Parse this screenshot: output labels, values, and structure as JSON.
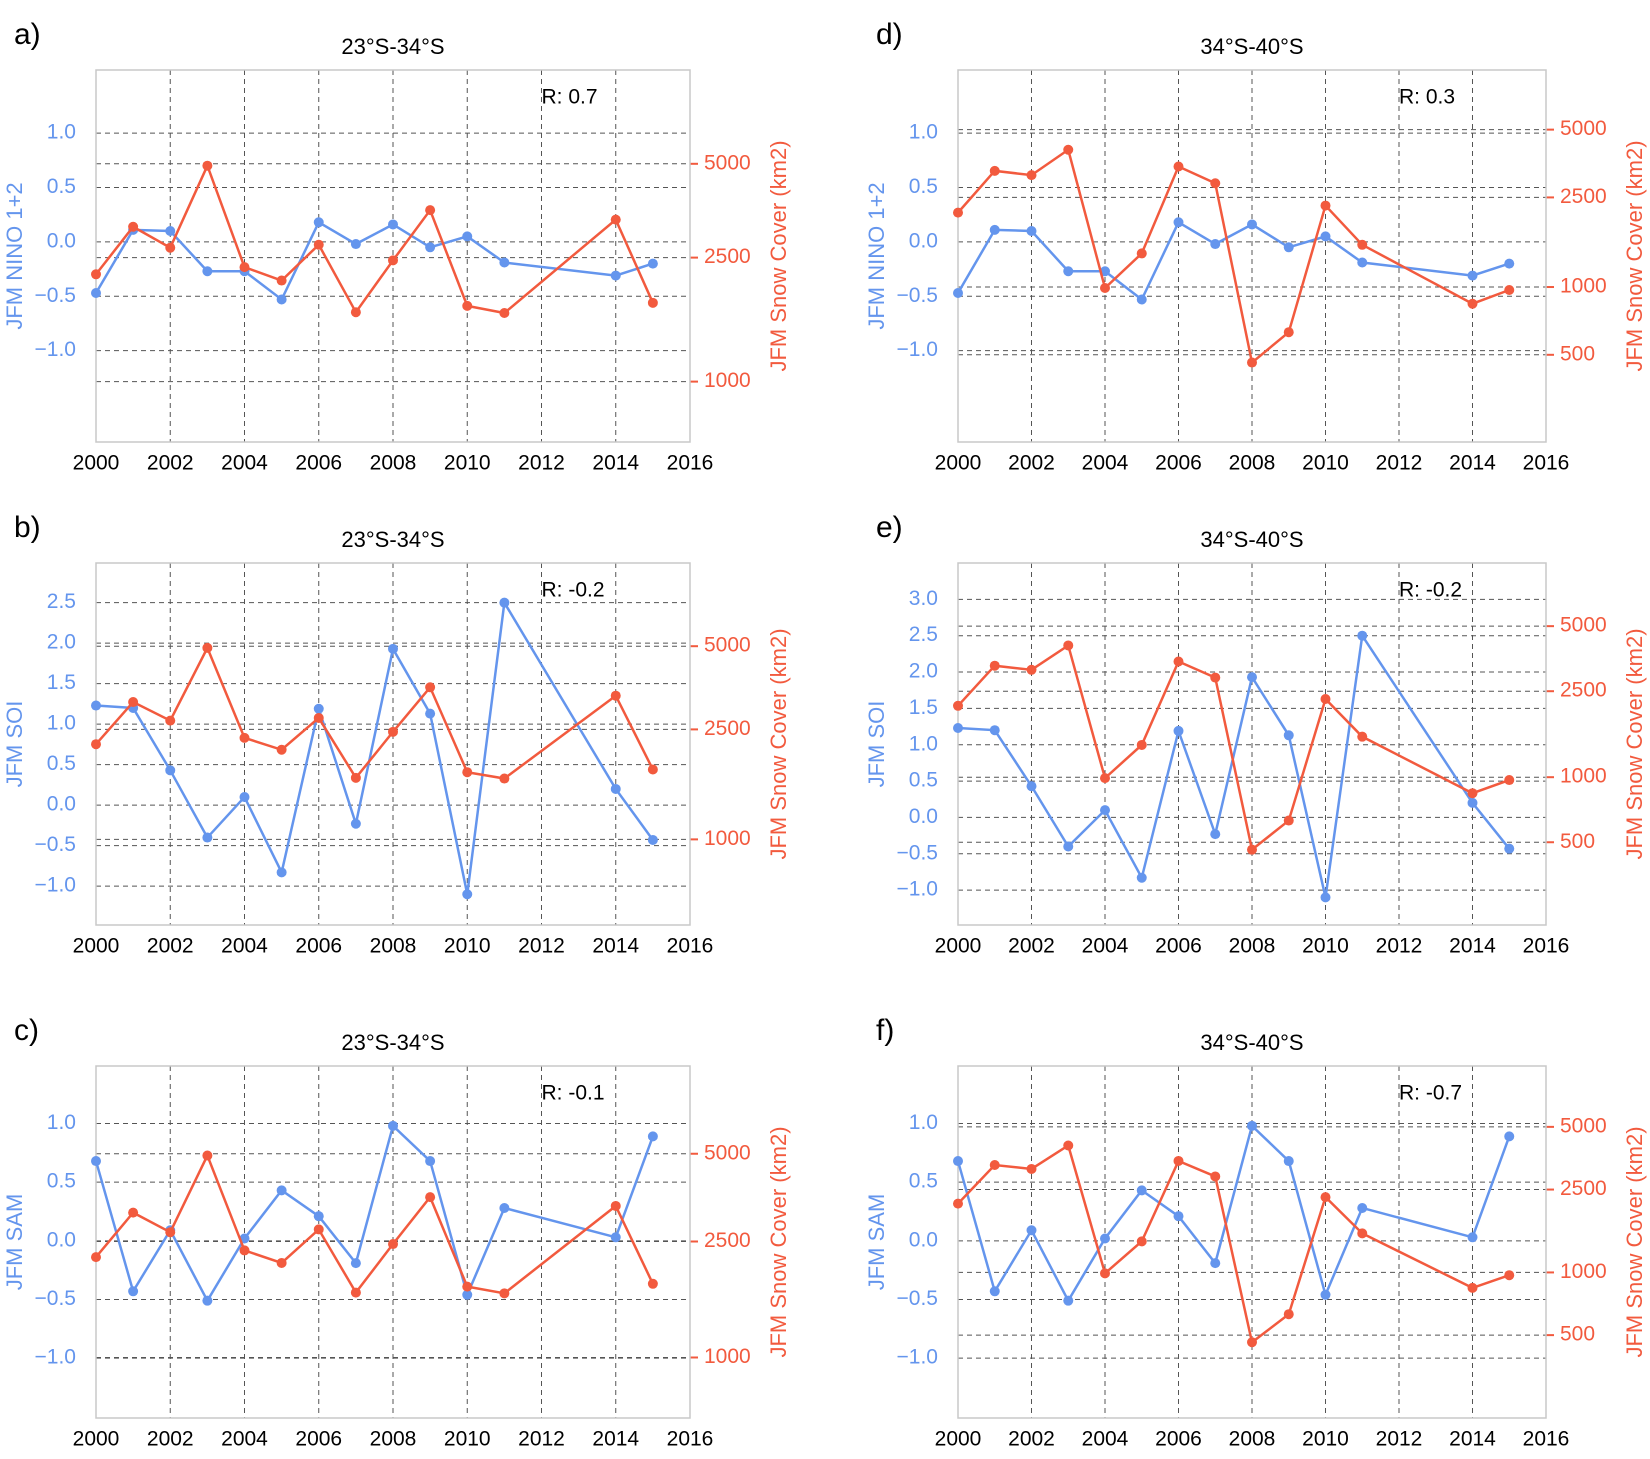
{
  "chart_data": [
    {
      "type": "line",
      "panel_label": "a)",
      "title": "23°S-34°S",
      "annotation": "R: 0.7",
      "ylabel": "JFM NINO 1+2",
      "y2label": "JFM Snow Cover (km2)",
      "x": [
        2000,
        2001,
        2002,
        2003,
        2004,
        2005,
        2006,
        2007,
        2008,
        2009,
        2010,
        2011,
        2014,
        2015
      ],
      "xlim": [
        2000,
        2016
      ],
      "xticks": [
        2000,
        2002,
        2004,
        2006,
        2008,
        2010,
        2012,
        2014,
        2016
      ],
      "ylim": [
        -1.84,
        1.58
      ],
      "yticks": [
        {
          "value": 1.0,
          "label": "1.0"
        },
        {
          "value": 0.5,
          "label": "0.5"
        },
        {
          "value": 0,
          "label": "0.0"
        },
        {
          "value": -0.5,
          "label": "−0.5"
        },
        {
          "value": -1.0,
          "label": "−1.0"
        }
      ],
      "y2lim": [
        640,
        10000
      ],
      "y2ticks": [
        1000,
        2500,
        5000
      ],
      "y2scale": "log",
      "grid": true,
      "series": [
        {
          "color": "#6495ed",
          "values": [
            -0.47,
            0.11,
            0.1,
            -0.27,
            -0.27,
            -0.53,
            0.18,
            -0.02,
            0.16,
            -0.05,
            0.05,
            -0.19,
            -0.31,
            -0.2
          ]
        },
        {
          "color": "#f25a3e",
          "axis": "y2",
          "values": [
            2210,
            3140,
            2690,
            4930,
            2330,
            2110,
            2750,
            1670,
            2450,
            3550,
            1750,
            1660,
            3310,
            1790
          ]
        }
      ]
    },
    {
      "type": "line",
      "panel_label": "b)",
      "title": "23°S-34°S",
      "annotation": "R: -0.2",
      "ylabel": "JFM SOI",
      "y2label": "JFM Snow Cover (km2)",
      "x": [
        2000,
        2001,
        2002,
        2003,
        2004,
        2005,
        2006,
        2007,
        2008,
        2009,
        2010,
        2011,
        2014,
        2015
      ],
      "xlim": [
        2000,
        2016
      ],
      "xticks": [
        2000,
        2002,
        2004,
        2006,
        2008,
        2010,
        2012,
        2014,
        2016
      ],
      "ylim": [
        -1.48,
        2.99
      ],
      "yticks": [
        2.5,
        {
          "value": 2.0,
          "label": "2.0"
        },
        1.5,
        {
          "value": 1.0,
          "label": "1.0"
        },
        0.5,
        {
          "value": 0,
          "label": "0.0"
        },
        {
          "value": -0.5,
          "label": "−0.5"
        },
        {
          "value": -1.0,
          "label": "−1.0"
        }
      ],
      "y2lim": [
        490,
        10000
      ],
      "y2ticks": [
        1000,
        2500,
        5000
      ],
      "y2scale": "log",
      "grid": true,
      "series": [
        {
          "color": "#6495ed",
          "values": [
            1.23,
            1.2,
            0.43,
            -0.4,
            0.1,
            -0.83,
            1.19,
            -0.23,
            1.93,
            1.13,
            -1.1,
            2.5,
            0.2,
            -0.43
          ]
        },
        {
          "color": "#f25a3e",
          "axis": "y2",
          "values": [
            2210,
            3140,
            2690,
            4930,
            2330,
            2110,
            2750,
            1670,
            2450,
            3550,
            1750,
            1660,
            3310,
            1790
          ]
        }
      ]
    },
    {
      "type": "line",
      "panel_label": "c)",
      "title": "23°S-34°S",
      "annotation": "R: -0.1",
      "ylabel": "JFM SAM",
      "y2label": "JFM Snow Cover (km2)",
      "x": [
        2000,
        2001,
        2002,
        2003,
        2004,
        2005,
        2006,
        2007,
        2008,
        2009,
        2010,
        2011,
        2014,
        2015
      ],
      "xlim": [
        2000,
        2016
      ],
      "xticks": [
        2000,
        2002,
        2004,
        2006,
        2008,
        2010,
        2012,
        2014,
        2016
      ],
      "ylim": [
        -1.51,
        1.49
      ],
      "yticks": [
        {
          "value": 1.0,
          "label": "1.0"
        },
        {
          "value": 0.5,
          "label": "0.5"
        },
        {
          "value": 0,
          "label": "0.0"
        },
        {
          "value": -0.5,
          "label": "−0.5"
        },
        {
          "value": -1.0,
          "label": "−1.0"
        }
      ],
      "y2lim": [
        620,
        10000
      ],
      "y2ticks": [
        1000,
        2500,
        5000
      ],
      "y2scale": "log",
      "grid": true,
      "series": [
        {
          "color": "#6495ed",
          "values": [
            0.68,
            -0.43,
            0.09,
            -0.51,
            0.02,
            0.43,
            0.21,
            -0.19,
            0.98,
            0.68,
            -0.46,
            0.28,
            0.03,
            0.89
          ]
        },
        {
          "color": "#f25a3e",
          "axis": "y2",
          "values": [
            2210,
            3140,
            2690,
            4930,
            2330,
            2110,
            2750,
            1670,
            2450,
            3550,
            1750,
            1660,
            3310,
            1790
          ]
        }
      ]
    },
    {
      "type": "line",
      "panel_label": "d)",
      "title": "34°S-40°S",
      "annotation": "R: 0.3",
      "ylabel": "JFM NINO 1+2",
      "y2label": "JFM Snow Cover (km2)",
      "x": [
        2000,
        2001,
        2002,
        2003,
        2004,
        2005,
        2006,
        2007,
        2008,
        2009,
        2010,
        2011,
        2014,
        2015
      ],
      "xlim": [
        2000,
        2016
      ],
      "xticks": [
        2000,
        2002,
        2004,
        2006,
        2008,
        2010,
        2012,
        2014,
        2016
      ],
      "ylim": [
        -1.84,
        1.58
      ],
      "yticks": [
        {
          "value": 1.0,
          "label": "1.0"
        },
        {
          "value": 0.5,
          "label": "0.5"
        },
        {
          "value": 0,
          "label": "0.0"
        },
        {
          "value": -0.5,
          "label": "−0.5"
        },
        {
          "value": -1.0,
          "label": "−1.0"
        }
      ],
      "y2lim": [
        205,
        9200
      ],
      "y2ticks": [
        500,
        1000,
        2500,
        5000
      ],
      "y2scale": "log",
      "grid": true,
      "series": [
        {
          "color": "#6495ed",
          "values": [
            -0.47,
            0.11,
            0.1,
            -0.27,
            -0.27,
            -0.53,
            0.18,
            -0.02,
            0.16,
            -0.05,
            0.05,
            -0.19,
            -0.31,
            -0.2
          ]
        },
        {
          "color": "#f25a3e",
          "axis": "y2",
          "values": [
            2140,
            3280,
            3140,
            4070,
            990,
            1410,
            3430,
            2890,
            462,
            630,
            2300,
            1540,
            843,
            970
          ]
        }
      ]
    },
    {
      "type": "line",
      "panel_label": "e)",
      "title": "34°S-40°S",
      "annotation": "R: -0.2",
      "ylabel": "JFM SOI",
      "y2label": "JFM Snow Cover (km2)",
      "x": [
        2000,
        2001,
        2002,
        2003,
        2004,
        2005,
        2006,
        2007,
        2008,
        2009,
        2010,
        2011,
        2014,
        2015
      ],
      "xlim": [
        2000,
        2016
      ],
      "xticks": [
        2000,
        2002,
        2004,
        2006,
        2008,
        2010,
        2012,
        2014,
        2016
      ],
      "ylim": [
        -1.48,
        3.5
      ],
      "yticks": [
        {
          "value": 3.0,
          "label": "3.0"
        },
        2.5,
        {
          "value": 2.0,
          "label": "2.0"
        },
        1.5,
        {
          "value": 1.0,
          "label": "1.0"
        },
        0.5,
        {
          "value": 0,
          "label": "0.0"
        },
        {
          "value": -0.5,
          "label": "−0.5"
        },
        {
          "value": -1.0,
          "label": "−1.0"
        }
      ],
      "y2lim": [
        207,
        9800
      ],
      "y2ticks": [
        500,
        1000,
        2500,
        5000
      ],
      "y2scale": "log",
      "grid": true,
      "series": [
        {
          "color": "#6495ed",
          "values": [
            1.23,
            1.2,
            0.43,
            -0.4,
            0.1,
            -0.83,
            1.19,
            -0.23,
            1.93,
            1.13,
            -1.1,
            2.5,
            0.2,
            -0.43
          ]
        },
        {
          "color": "#f25a3e",
          "axis": "y2",
          "values": [
            2140,
            3280,
            3140,
            4070,
            990,
            1410,
            3430,
            2890,
            462,
            630,
            2300,
            1540,
            843,
            970
          ]
        }
      ]
    },
    {
      "type": "line",
      "panel_label": "f)",
      "title": "34°S-40°S",
      "annotation": "R: -0.7",
      "ylabel": "JFM SAM",
      "y2label": "JFM Snow Cover (km2)",
      "x": [
        2000,
        2001,
        2002,
        2003,
        2004,
        2005,
        2006,
        2007,
        2008,
        2009,
        2010,
        2011,
        2014,
        2015
      ],
      "xlim": [
        2000,
        2016
      ],
      "xticks": [
        2000,
        2002,
        2004,
        2006,
        2008,
        2010,
        2012,
        2014,
        2016
      ],
      "ylim": [
        -1.51,
        1.49
      ],
      "yticks": [
        {
          "value": 1.0,
          "label": "1.0"
        },
        {
          "value": 0.5,
          "label": "0.5"
        },
        {
          "value": 0,
          "label": "0.0"
        },
        {
          "value": -0.5,
          "label": "−0.5"
        },
        {
          "value": -1.0,
          "label": "−1.0"
        }
      ],
      "y2lim": [
        200,
        9800
      ],
      "y2ticks": [
        500,
        1000,
        2500,
        5000
      ],
      "y2scale": "log",
      "grid": true,
      "series": [
        {
          "color": "#6495ed",
          "values": [
            0.68,
            -0.43,
            0.09,
            -0.51,
            0.02,
            0.43,
            0.21,
            -0.19,
            0.98,
            0.68,
            -0.46,
            0.28,
            0.03,
            0.89
          ]
        },
        {
          "color": "#f25a3e",
          "axis": "y2",
          "values": [
            2140,
            3280,
            3140,
            4070,
            990,
            1410,
            3430,
            2890,
            462,
            630,
            2300,
            1540,
            843,
            970
          ]
        }
      ]
    }
  ]
}
